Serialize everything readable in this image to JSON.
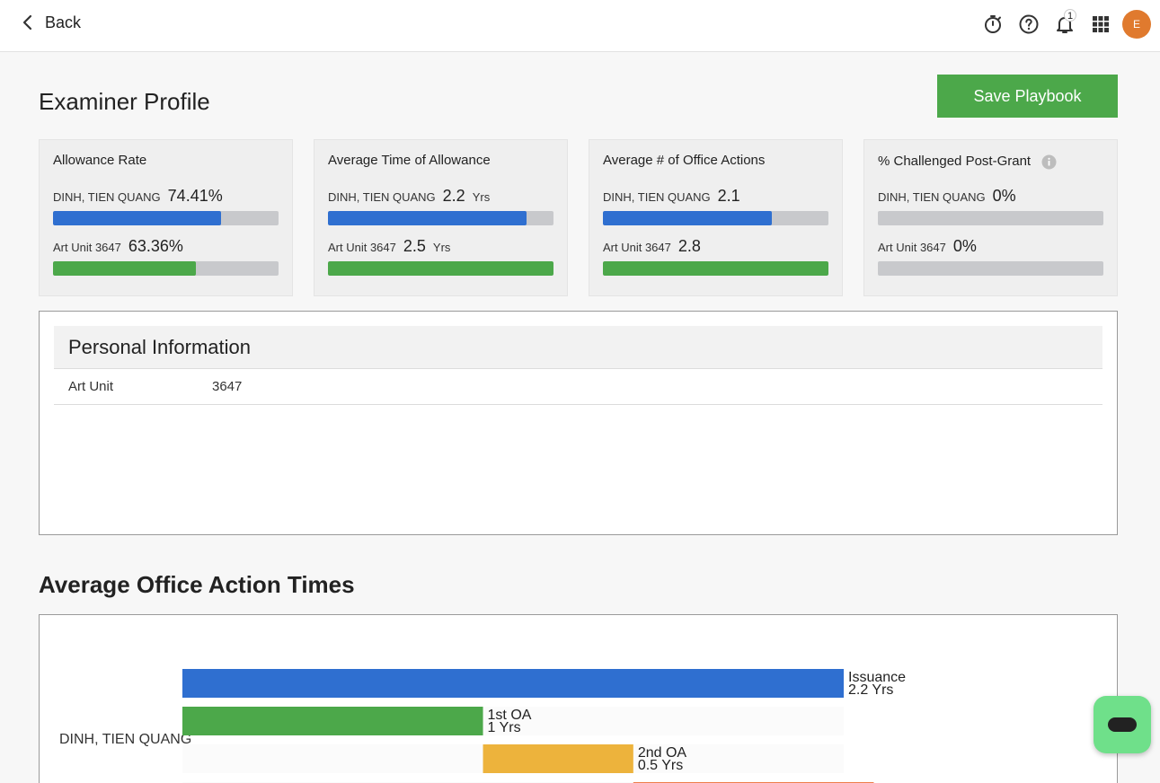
{
  "nav": {
    "back_label": "Back",
    "notification_count": "1",
    "avatar_initial": "E"
  },
  "page": {
    "title": "Examiner Profile",
    "save_label": "Save Playbook"
  },
  "metrics": [
    {
      "title": "Allowance Rate",
      "examiner": {
        "label": "DINH, TIEN QUANG",
        "value": "74.41%",
        "unit": "",
        "fill": 0.7441
      },
      "unit_row": {
        "label": "Art Unit 3647",
        "value": "63.36%",
        "unit": "",
        "fill": 0.6336
      }
    },
    {
      "title": "Average Time of Allowance",
      "examiner": {
        "label": "DINH, TIEN QUANG",
        "value": "2.2",
        "unit": "Yrs",
        "fill": 0.88
      },
      "unit_row": {
        "label": "Art Unit 3647",
        "value": "2.5",
        "unit": "Yrs",
        "fill": 1.0
      }
    },
    {
      "title": "Average # of Office Actions",
      "examiner": {
        "label": "DINH, TIEN QUANG",
        "value": "2.1",
        "unit": "",
        "fill": 0.75
      },
      "unit_row": {
        "label": "Art Unit 3647",
        "value": "2.8",
        "unit": "",
        "fill": 1.0
      }
    },
    {
      "title": "% Challenged Post-Grant",
      "examiner": {
        "label": "DINH, TIEN QUANG",
        "value": "0%",
        "unit": "",
        "fill": 0
      },
      "unit_row": {
        "label": "Art Unit 3647",
        "value": "0%",
        "unit": "",
        "fill": 0
      }
    }
  ],
  "personal_info": {
    "title": "Personal Information",
    "art_unit_label": "Art Unit",
    "art_unit_value": "3647"
  },
  "oa_section": {
    "title": "Average Office Action Times"
  },
  "chart_data": {
    "type": "bar",
    "orientation": "horizontal-stacked-waterfall",
    "category": "DINH, TIEN QUANG",
    "series": [
      {
        "name": "Issuance",
        "label": "2.2 Yrs",
        "start": 0,
        "value": 2.2,
        "color": "#2f6fd0"
      },
      {
        "name": "1st OA",
        "label": "1 Yrs",
        "start": 0,
        "value": 1.0,
        "color": "#4ca84a"
      },
      {
        "name": "2nd OA",
        "label": "0.5 Yrs",
        "start": 1.0,
        "value": 0.5,
        "color": "#edb33c"
      },
      {
        "name": "",
        "label": "",
        "start": 1.5,
        "value": 0.8,
        "color": "#ef7f4c"
      }
    ],
    "xlim": [
      0,
      2.2
    ]
  }
}
